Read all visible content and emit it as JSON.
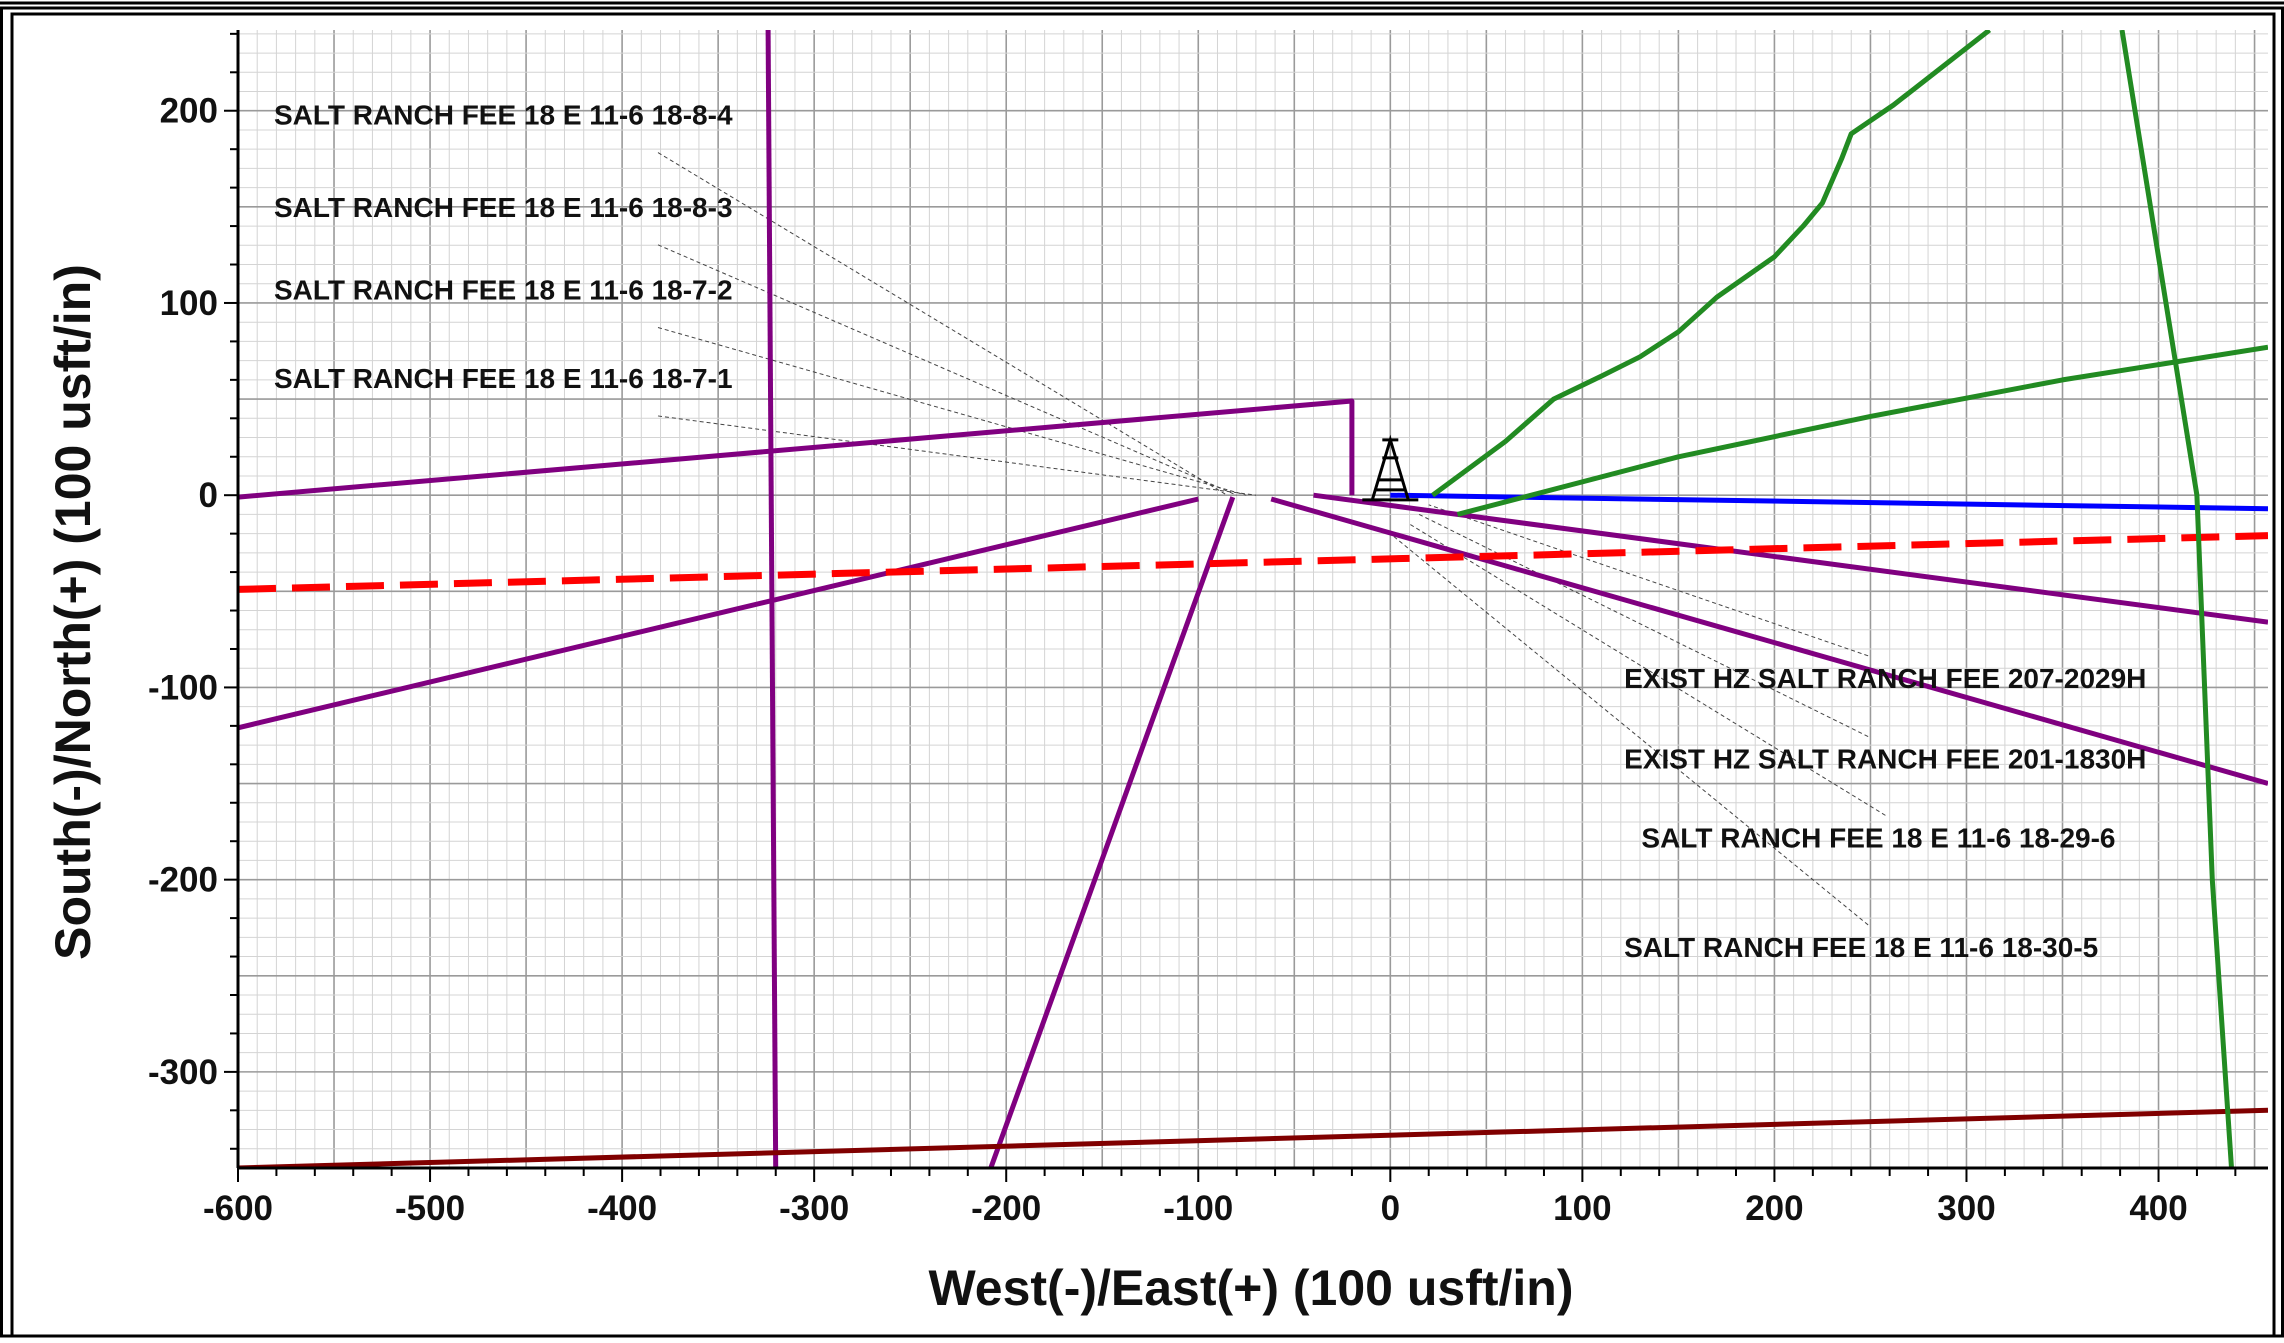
{
  "chart_data": {
    "type": "line",
    "xlabel": "West(-)/East(+) (100 usft/in)",
    "ylabel": "South(-)/North(+) (100 usft/in)",
    "xlim": [
      -600,
      457
    ],
    "ylim": [
      -350,
      242
    ],
    "x_ticks": [
      -600,
      -500,
      -400,
      -300,
      -200,
      -100,
      0,
      100,
      200,
      300,
      400
    ],
    "y_ticks": [
      200,
      100,
      0,
      -100,
      -200,
      -300
    ],
    "x_tick_labels": [
      "-600",
      "-500",
      "-400",
      "-300",
      "-200",
      "-100",
      "0",
      "100",
      "200",
      "300",
      "400"
    ],
    "y_tick_labels": [
      "200",
      "100",
      "0",
      "-100",
      "-200",
      "-300"
    ],
    "grid": true,
    "surface_marker": {
      "icon": "drilling-rig-icon",
      "x": 0,
      "y": 8
    },
    "series": [
      {
        "color": "#800080",
        "points": [
          [
            -600,
            -1
          ],
          [
            -20,
            49
          ],
          [
            -20,
            0
          ]
        ]
      },
      {
        "color": "#800080",
        "points": [
          [
            -324,
            242
          ],
          [
            -320,
            -350
          ]
        ]
      },
      {
        "color": "#800080",
        "points": [
          [
            -600,
            -121
          ],
          [
            -100,
            -2
          ]
        ]
      },
      {
        "color": "#800080",
        "points": [
          [
            -208,
            -350
          ],
          [
            -82,
            -1
          ]
        ]
      },
      {
        "color": "#800080",
        "points": [
          [
            -40,
            0
          ],
          [
            457,
            -66
          ]
        ]
      },
      {
        "color": "#800080",
        "points": [
          [
            -62,
            -2
          ],
          [
            457,
            -150
          ]
        ]
      },
      {
        "color": "#0000ff",
        "points": [
          [
            0,
            0
          ],
          [
            457,
            -7
          ]
        ]
      },
      {
        "color": "#ff0000",
        "dashed": true,
        "points": [
          [
            -600,
            -49
          ],
          [
            457,
            -21
          ]
        ]
      },
      {
        "color": "#800000",
        "points": [
          [
            -600,
            -350
          ],
          [
            457,
            -320
          ]
        ]
      },
      {
        "color": "#228b22",
        "points": [
          [
            22,
            0
          ],
          [
            60,
            28
          ],
          [
            85,
            50
          ],
          [
            110,
            62
          ],
          [
            130,
            72
          ],
          [
            150,
            85
          ],
          [
            170,
            103
          ],
          [
            200,
            124
          ],
          [
            215,
            140
          ],
          [
            225,
            152
          ],
          [
            235,
            175
          ],
          [
            240,
            188
          ],
          [
            262,
            203
          ],
          [
            312,
            242
          ]
        ]
      },
      {
        "color": "#228b22",
        "points": [
          [
            35,
            -10
          ],
          [
            150,
            20
          ],
          [
            250,
            41
          ],
          [
            350,
            60
          ],
          [
            457,
            77
          ]
        ]
      },
      {
        "color": "#228b22",
        "points": [
          [
            381,
            242
          ],
          [
            420,
            0
          ],
          [
            428,
            -200
          ],
          [
            438,
            -350
          ]
        ]
      }
    ],
    "labels": [
      {
        "text": "SALT RANCH FEE 18 E 11-6 18-8-4",
        "anchor": [
          -600,
          198
        ],
        "target": [
          -85,
          0
        ]
      },
      {
        "text": "SALT RANCH FEE 18 E 11-6 18-8-3",
        "anchor": [
          -600,
          150
        ],
        "target": [
          -80,
          0
        ]
      },
      {
        "text": "SALT RANCH FEE 18 E 11-6 18-7-2",
        "anchor": [
          -600,
          107
        ],
        "target": [
          -75,
          0
        ]
      },
      {
        "text": "SALT RANCH FEE 18 E 11-6 18-7-1",
        "anchor": [
          -600,
          61
        ],
        "target": [
          -70,
          0
        ]
      },
      {
        "text": "EXIST HZ SALT RANCH FEE 207-2029H",
        "anchor": [
          103,
          -95
        ],
        "target": [
          20,
          -5
        ]
      },
      {
        "text": "EXIST HZ SALT RANCH FEE 201-1830H",
        "anchor": [
          103,
          -137
        ],
        "target": [
          15,
          -10
        ]
      },
      {
        "text": "SALT RANCH FEE 18 E 11-6 18-29-6",
        "anchor": [
          112,
          -178
        ],
        "target": [
          10,
          -15
        ]
      },
      {
        "text": "SALT RANCH FEE 18 E 11-6 18-30-5",
        "anchor": [
          103,
          -235
        ],
        "target": [
          0,
          -20
        ]
      }
    ]
  }
}
